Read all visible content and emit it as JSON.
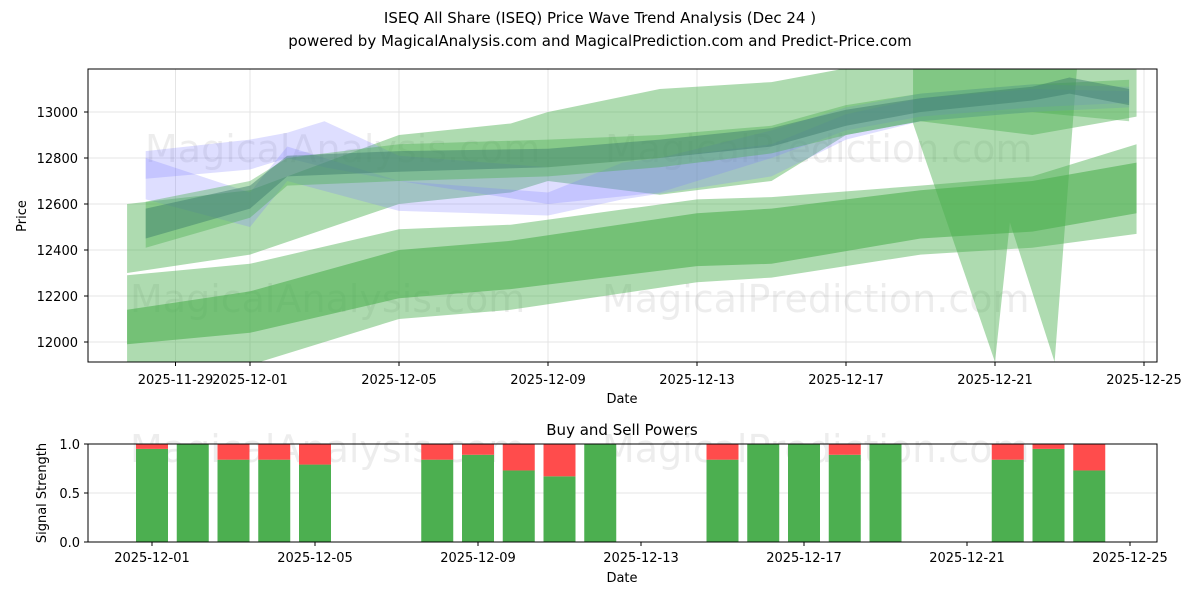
{
  "title": "ISEQ All Share (ISEQ) Price Wave Trend Analysis (Dec 24 )",
  "subtitle": "powered by MagicalAnalysis.com and MagicalPrediction.com and Predict-Price.com",
  "watermarks": [
    "MagicalAnalysis.com",
    "MagicalPrediction.com"
  ],
  "colors": {
    "green": "#4caf50",
    "blue": "#7b7bff",
    "red": "#ff4c4c",
    "teal": "#3a7a6a"
  },
  "chart_data": [
    {
      "type": "area",
      "title": "",
      "xlabel": "Date",
      "ylabel": "Price",
      "ylim": [
        11913,
        13187
      ],
      "xticks": [
        "2025-11-29",
        "2025-12-01",
        "2025-12-05",
        "2025-12-09",
        "2025-12-13",
        "2025-12-17",
        "2025-12-21",
        "2025-12-25"
      ],
      "yticks": [
        12000,
        12200,
        12400,
        12600,
        12800,
        13000
      ],
      "grid": true,
      "bands": [
        {
          "name": "lower-outer",
          "color": "green",
          "opacity": 0.45,
          "points": [
            [
              "2025-11-27.7",
              11870,
              12290
            ],
            [
              "2025-12-01",
              11900,
              12340
            ],
            [
              "2025-12-05",
              12100,
              12490
            ],
            [
              "2025-12-08",
              12140,
              12510
            ],
            [
              "2025-12-13",
              12260,
              12620
            ],
            [
              "2025-12-15",
              12280,
              12630
            ],
            [
              "2025-12-19",
              12380,
              12680
            ],
            [
              "2025-12-22",
              12410,
              12720
            ],
            [
              "2025-12-24.8",
              12470,
              12860
            ]
          ]
        },
        {
          "name": "lower-inner",
          "color": "green",
          "opacity": 0.6,
          "points": [
            [
              "2025-11-27.7",
              11990,
              12140
            ],
            [
              "2025-12-01",
              12040,
              12220
            ],
            [
              "2025-12-05",
              12190,
              12400
            ],
            [
              "2025-12-08",
              12230,
              12440
            ],
            [
              "2025-12-13",
              12330,
              12560
            ],
            [
              "2025-12-15",
              12340,
              12580
            ],
            [
              "2025-12-19",
              12450,
              12660
            ],
            [
              "2025-12-22",
              12480,
              12700
            ],
            [
              "2025-12-24.8",
              12560,
              12780
            ]
          ]
        },
        {
          "name": "upper-outer",
          "color": "green",
          "opacity": 0.45,
          "points": [
            [
              "2025-11-27.7",
              12300,
              12600
            ],
            [
              "2025-12-01",
              12380,
              12660
            ],
            [
              "2025-12-05",
              12600,
              12900
            ],
            [
              "2025-12-08",
              12650,
              12950
            ],
            [
              "2025-12-09",
              12700,
              13000
            ],
            [
              "2025-12-12",
              12640,
              13100
            ],
            [
              "2025-12-15",
              12700,
              13130
            ],
            [
              "2025-12-17",
              12900,
              13190
            ],
            [
              "2025-12-19",
              12960,
              13190
            ],
            [
              "2025-12-22",
              12900,
              13190
            ],
            [
              "2025-12-24.8",
              12980,
              13190
            ]
          ]
        },
        {
          "name": "spike",
          "color": "green",
          "opacity": 0.45,
          "points": [
            [
              "2025-12-18.8",
              12950,
              13187
            ],
            [
              "2025-12-21",
              11913,
              13187
            ],
            [
              "2025-12-21.4",
              12520,
              13187
            ],
            [
              "2025-12-22.6",
              11913,
              13187
            ],
            [
              "2025-12-23.2",
              13187,
              13187
            ]
          ]
        },
        {
          "name": "blue-upper",
          "color": "blue",
          "opacity": 0.25,
          "points": [
            [
              "2025-11-28.2",
              12710,
              12830
            ],
            [
              "2025-12-01",
              12750,
              12880
            ],
            [
              "2025-12-02",
              12800,
              12910
            ],
            [
              "2025-12-03",
              12760,
              12960
            ],
            [
              "2025-12-05",
              12700,
              12810
            ],
            [
              "2025-12-09",
              12600,
              12760
            ],
            [
              "2025-12-12",
              12650,
              12800
            ],
            [
              "2025-12-15",
              12800,
              12920
            ],
            [
              "2025-12-17",
              12920,
              13020
            ],
            [
              "2025-12-19",
              12980,
              13080
            ],
            [
              "2025-12-22",
              13020,
              13120
            ],
            [
              "2025-12-24.6",
              13040,
              13110
            ]
          ]
        },
        {
          "name": "blue-lower",
          "color": "blue",
          "opacity": 0.25,
          "points": [
            [
              "2025-11-28.2",
              12620,
              12800
            ],
            [
              "2025-12-01",
              12500,
              12650
            ],
            [
              "2025-12-02",
              12700,
              12850
            ],
            [
              "2025-12-05",
              12570,
              12700
            ],
            [
              "2025-12-09",
              12550,
              12650
            ],
            [
              "2025-12-11",
              12620,
              12780
            ],
            [
              "2025-12-15",
              12720,
              12860
            ],
            [
              "2025-12-17",
              12880,
              12990
            ],
            [
              "2025-12-19",
              12960,
              13060
            ],
            [
              "2025-12-22",
              13000,
              13100
            ],
            [
              "2025-12-24.6",
              13020,
              13090
            ]
          ]
        },
        {
          "name": "mid-green",
          "color": "green",
          "opacity": 0.4,
          "points": [
            [
              "2025-11-28.2",
              12410,
              12610
            ],
            [
              "2025-12-01",
              12540,
              12700
            ],
            [
              "2025-12-02",
              12680,
              12800
            ],
            [
              "2025-12-05",
              12700,
              12860
            ],
            [
              "2025-12-09",
              12720,
              12880
            ],
            [
              "2025-12-12",
              12760,
              12900
            ],
            [
              "2025-12-15",
              12820,
              12940
            ],
            [
              "2025-12-17",
              12900,
              13030
            ],
            [
              "2025-12-19",
              12960,
              13080
            ],
            [
              "2025-12-22",
              13000,
              13120
            ],
            [
              "2025-12-24.6",
              12960,
              13140
            ]
          ]
        },
        {
          "name": "teal-core",
          "color": "teal",
          "opacity": 0.45,
          "points": [
            [
              "2025-11-28.2",
              12450,
              12580
            ],
            [
              "2025-12-01",
              12580,
              12680
            ],
            [
              "2025-12-02",
              12720,
              12810
            ],
            [
              "2025-12-05",
              12740,
              12830
            ],
            [
              "2025-12-09",
              12760,
              12840
            ],
            [
              "2025-12-12",
              12800,
              12880
            ],
            [
              "2025-12-15",
              12850,
              12930
            ],
            [
              "2025-12-17",
              12940,
              13010
            ],
            [
              "2025-12-19",
              13000,
              13060
            ],
            [
              "2025-12-22",
              13050,
              13110
            ],
            [
              "2025-12-23",
              13080,
              13150
            ],
            [
              "2025-12-24.6",
              13030,
              13100
            ]
          ]
        }
      ]
    },
    {
      "type": "bar",
      "title": "Buy and Sell Powers",
      "xlabel": "Date",
      "ylabel": "Signal Strength",
      "ylim": [
        0,
        1
      ],
      "yticks": [
        "0.0",
        "0.5",
        "1.0"
      ],
      "xticks": [
        "2025-12-01",
        "2025-12-05",
        "2025-12-09",
        "2025-12-13",
        "2025-12-17",
        "2025-12-21",
        "2025-12-25"
      ],
      "categories": [
        "2025-12-01",
        "2025-12-02",
        "2025-12-03",
        "2025-12-04",
        "2025-12-05",
        "2025-12-08",
        "2025-12-09",
        "2025-12-10",
        "2025-12-11",
        "2025-12-12",
        "2025-12-15",
        "2025-12-16",
        "2025-12-17",
        "2025-12-18",
        "2025-12-19",
        "2025-12-22",
        "2025-12-23",
        "2025-12-24"
      ],
      "series": [
        {
          "name": "Buy",
          "color": "green",
          "values": [
            0.95,
            1.0,
            0.84,
            0.84,
            0.79,
            0.84,
            0.89,
            0.73,
            0.67,
            1.0,
            0.84,
            1.0,
            1.0,
            0.89,
            1.0,
            0.84,
            0.95,
            0.73
          ]
        },
        {
          "name": "Sell",
          "color": "red",
          "values": [
            0.05,
            0.0,
            0.16,
            0.16,
            0.21,
            0.16,
            0.11,
            0.27,
            0.33,
            0.0,
            0.16,
            0.0,
            0.0,
            0.11,
            0.0,
            0.16,
            0.05,
            0.27
          ]
        }
      ]
    }
  ]
}
